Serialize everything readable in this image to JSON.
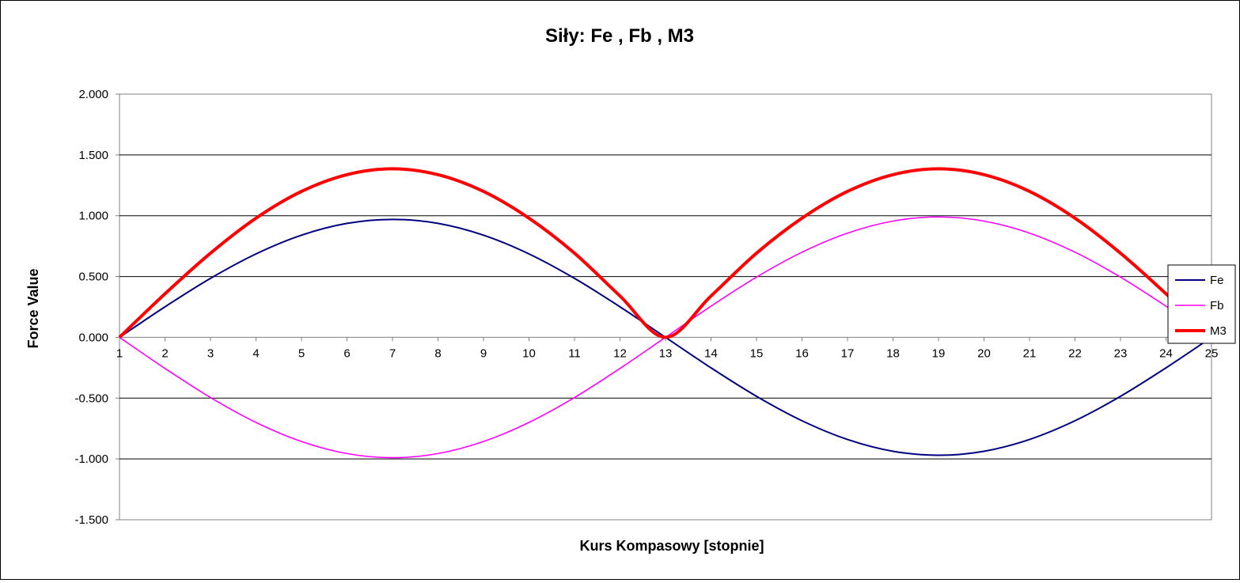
{
  "chart_data": {
    "type": "line",
    "title": "Siły:  Fe , Fb , M3",
    "xlabel": "Kurs Kompasowy  [stopnie]",
    "ylabel": "Force Value",
    "categories": [
      "1",
      "2",
      "3",
      "4",
      "5",
      "6",
      "7",
      "8",
      "9",
      "10",
      "11",
      "12",
      "13",
      "14",
      "15",
      "16",
      "17",
      "18",
      "19",
      "20",
      "21",
      "22",
      "23",
      "24",
      "25"
    ],
    "y_ticks": [
      "2.000",
      "1.500",
      "1.000",
      "0.500",
      "0.000",
      "-0.500",
      "-1.000",
      "-1.500"
    ],
    "ylim": [
      -1.5,
      2.0
    ],
    "grid": true,
    "legend_position": "right",
    "series": [
      {
        "name": "Fe",
        "color": "#000080",
        "values": [
          0,
          0.251,
          0.485,
          0.686,
          0.84,
          0.937,
          0.97,
          0.937,
          0.84,
          0.686,
          0.485,
          0.251,
          0,
          -0.251,
          -0.485,
          -0.686,
          -0.84,
          -0.937,
          -0.97,
          -0.937,
          -0.84,
          -0.686,
          -0.485,
          -0.251,
          0
        ]
      },
      {
        "name": "Fb",
        "color": "#FF00FF",
        "values": [
          0,
          -0.256,
          -0.495,
          -0.7,
          -0.857,
          -0.956,
          -0.99,
          -0.956,
          -0.857,
          -0.7,
          -0.495,
          -0.256,
          0,
          0.256,
          0.495,
          0.7,
          0.857,
          0.956,
          0.99,
          0.956,
          0.857,
          0.7,
          0.495,
          0.256,
          0
        ]
      },
      {
        "name": "M3",
        "color": "#FF0000",
        "values": [
          0,
          0.358,
          0.692,
          0.98,
          1.2,
          1.338,
          1.386,
          1.338,
          1.2,
          0.98,
          0.692,
          0.34,
          0,
          0.34,
          0.692,
          0.98,
          1.2,
          1.338,
          1.386,
          1.338,
          1.2,
          0.98,
          0.692,
          0.358,
          0
        ]
      }
    ]
  }
}
